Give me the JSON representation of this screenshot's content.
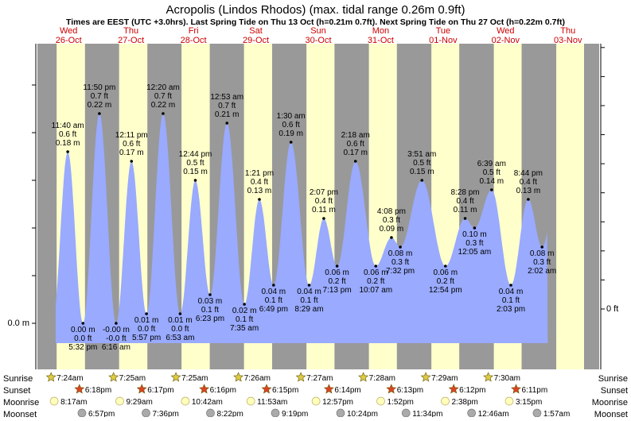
{
  "chart_data": {
    "type": "area",
    "title": "Acropolis (Lindos Rhodos) (max. tidal range 0.26m 0.9ft)",
    "subtitle": "Times are EEST (UTC +3.0hrs). Last Spring Tide on Thu 13 Oct (h=0.21m 0.7ft). Next Spring Tide on Thu 27 Oct (h=0.22m 0.7ft)",
    "xlabel": "",
    "ylabel": "",
    "y_unit_left": "m",
    "y_unit_right": "ft",
    "y_tick_left": "0.0 m",
    "y_tick_right": "0 ft",
    "ylim": [
      -0.02,
      0.24
    ],
    "days": [
      {
        "dow": "Wed",
        "date": "26-Oct"
      },
      {
        "dow": "Thu",
        "date": "27-Oct"
      },
      {
        "dow": "Fri",
        "date": "28-Oct"
      },
      {
        "dow": "Sat",
        "date": "29-Oct"
      },
      {
        "dow": "Sun",
        "date": "30-Oct"
      },
      {
        "dow": "Mon",
        "date": "31-Oct"
      },
      {
        "dow": "Tue",
        "date": "01-Nov"
      },
      {
        "dow": "Wed",
        "date": "02-Nov"
      },
      {
        "dow": "Thu",
        "date": "03-Nov"
      }
    ],
    "tides": [
      {
        "day": 0,
        "t": 11.667,
        "time": "11:40 am",
        "h": 0.18,
        "m_label": "0.18 m",
        "ft_label": "0.6 ft",
        "type": "high"
      },
      {
        "day": 0,
        "t": 17.533,
        "time": "5:32 pm",
        "h": 0.0,
        "m_label": "0.00 m",
        "ft_label": "0.0 ft",
        "type": "low"
      },
      {
        "day": 0,
        "t": 23.833,
        "time": "11:50 pm",
        "h": 0.22,
        "m_label": "0.22 m",
        "ft_label": "0.7 ft",
        "type": "high"
      },
      {
        "day": 1,
        "t": 6.267,
        "time": "6:16 am",
        "h": 0.0,
        "m_label": "-0.00 m",
        "ft_label": "-0.0 ft",
        "type": "low"
      },
      {
        "day": 1,
        "t": 12.183,
        "time": "12:11 pm",
        "h": 0.17,
        "m_label": "0.17 m",
        "ft_label": "0.6 ft",
        "type": "high"
      },
      {
        "day": 1,
        "t": 17.95,
        "time": "5:57 pm",
        "h": 0.01,
        "m_label": "0.01 m",
        "ft_label": "0.0 ft",
        "type": "low"
      },
      {
        "day": 2,
        "t": 0.333,
        "time": "12:20 am",
        "h": 0.22,
        "m_label": "0.22 m",
        "ft_label": "0.7 ft",
        "type": "high"
      },
      {
        "day": 2,
        "t": 6.883,
        "time": "6:53 am",
        "h": 0.01,
        "m_label": "0.01 m",
        "ft_label": "0.0 ft",
        "type": "low"
      },
      {
        "day": 2,
        "t": 12.733,
        "time": "12:44 pm",
        "h": 0.15,
        "m_label": "0.15 m",
        "ft_label": "0.5 ft",
        "type": "high"
      },
      {
        "day": 2,
        "t": 18.383,
        "time": "6:23 pm",
        "h": 0.03,
        "m_label": "0.03 m",
        "ft_label": "0.1 ft",
        "type": "low"
      },
      {
        "day": 3,
        "t": 0.883,
        "time": "12:53 am",
        "h": 0.21,
        "m_label": "0.21 m",
        "ft_label": "0.7 ft",
        "type": "high"
      },
      {
        "day": 3,
        "t": 7.583,
        "time": "7:35 am",
        "h": 0.02,
        "m_label": "0.02 m",
        "ft_label": "0.1 ft",
        "type": "low"
      },
      {
        "day": 3,
        "t": 13.35,
        "time": "1:21 pm",
        "h": 0.13,
        "m_label": "0.13 m",
        "ft_label": "0.4 ft",
        "type": "high"
      },
      {
        "day": 3,
        "t": 18.817,
        "time": "6:49 pm",
        "h": 0.04,
        "m_label": "0.04 m",
        "ft_label": "0.1 ft",
        "type": "low"
      },
      {
        "day": 4,
        "t": 1.5,
        "time": "1:30 am",
        "h": 0.19,
        "m_label": "0.19 m",
        "ft_label": "0.6 ft",
        "type": "high"
      },
      {
        "day": 4,
        "t": 8.483,
        "time": "8:29 am",
        "h": 0.04,
        "m_label": "0.04 m",
        "ft_label": "0.1 ft",
        "type": "low"
      },
      {
        "day": 4,
        "t": 14.117,
        "time": "2:07 pm",
        "h": 0.11,
        "m_label": "0.11 m",
        "ft_label": "0.4 ft",
        "type": "high"
      },
      {
        "day": 4,
        "t": 19.217,
        "time": "7:13 pm",
        "h": 0.06,
        "m_label": "0.06 m",
        "ft_label": "0.2 ft",
        "type": "low"
      },
      {
        "day": 5,
        "t": 2.3,
        "time": "2:18 am",
        "h": 0.17,
        "m_label": "0.17 m",
        "ft_label": "0.6 ft",
        "type": "high"
      },
      {
        "day": 5,
        "t": 10.117,
        "time": "10:07 am",
        "h": 0.06,
        "m_label": "0.06 m",
        "ft_label": "0.2 ft",
        "type": "low"
      },
      {
        "day": 5,
        "t": 16.133,
        "time": "4:08 pm",
        "h": 0.09,
        "m_label": "0.09 m",
        "ft_label": "0.3 ft",
        "type": "high"
      },
      {
        "day": 5,
        "t": 19.533,
        "time": "7:32 pm",
        "h": 0.08,
        "m_label": "0.08 m",
        "ft_label": "0.3 ft",
        "type": "low"
      },
      {
        "day": 6,
        "t": 3.85,
        "time": "3:51 am",
        "h": 0.15,
        "m_label": "0.15 m",
        "ft_label": "0.5 ft",
        "type": "high"
      },
      {
        "day": 6,
        "t": 12.9,
        "time": "12:54 pm",
        "h": 0.06,
        "m_label": "0.06 m",
        "ft_label": "0.2 ft",
        "type": "low"
      },
      {
        "day": 6,
        "t": 20.467,
        "time": "8:28 pm",
        "h": 0.11,
        "m_label": "0.11 m",
        "ft_label": "0.4 ft",
        "type": "high"
      },
      {
        "day": 7,
        "t": 0.083,
        "time": "12:05 am",
        "h": 0.1,
        "m_label": "0.10 m",
        "ft_label": "0.3 ft",
        "type": "low"
      },
      {
        "day": 7,
        "t": 6.65,
        "time": "6:39 am",
        "h": 0.14,
        "m_label": "0.14 m",
        "ft_label": "0.5 ft",
        "type": "high"
      },
      {
        "day": 7,
        "t": 14.05,
        "time": "2:03 pm",
        "h": 0.04,
        "m_label": "0.04 m",
        "ft_label": "0.1 ft",
        "type": "low"
      },
      {
        "day": 7,
        "t": 20.733,
        "time": "8:44 pm",
        "h": 0.13,
        "m_label": "0.13 m",
        "ft_label": "0.4 ft",
        "type": "high"
      },
      {
        "day": 8,
        "t": 2.033,
        "time": "2:02 am",
        "h": 0.08,
        "m_label": "0.08 m",
        "ft_label": "0.3 ft",
        "type": "low"
      }
    ],
    "sun_moon": {
      "row_labels": [
        "Sunrise",
        "Sunset",
        "Moonrise",
        "Moonset"
      ],
      "sunrise": [
        {
          "day": 0,
          "t": 7.4,
          "label": "7:24am"
        },
        {
          "day": 1,
          "t": 7.417,
          "label": "7:25am"
        },
        {
          "day": 2,
          "t": 7.417,
          "label": "7:25am"
        },
        {
          "day": 3,
          "t": 7.433,
          "label": "7:26am"
        },
        {
          "day": 4,
          "t": 7.45,
          "label": "7:27am"
        },
        {
          "day": 5,
          "t": 7.467,
          "label": "7:28am"
        },
        {
          "day": 6,
          "t": 7.483,
          "label": "7:29am"
        },
        {
          "day": 7,
          "t": 7.5,
          "label": "7:30am"
        }
      ],
      "sunset": [
        {
          "day": 0,
          "t": 18.3,
          "label": "6:18pm"
        },
        {
          "day": 1,
          "t": 18.283,
          "label": "6:17pm"
        },
        {
          "day": 2,
          "t": 18.267,
          "label": "6:16pm"
        },
        {
          "day": 3,
          "t": 18.25,
          "label": "6:15pm"
        },
        {
          "day": 4,
          "t": 18.233,
          "label": "6:14pm"
        },
        {
          "day": 5,
          "t": 18.217,
          "label": "6:13pm"
        },
        {
          "day": 6,
          "t": 18.2,
          "label": "6:12pm"
        },
        {
          "day": 7,
          "t": 18.183,
          "label": "6:11pm"
        }
      ],
      "moonrise": [
        {
          "day": 0,
          "t": 8.283,
          "label": "8:17am"
        },
        {
          "day": 1,
          "t": 9.483,
          "label": "9:29am"
        },
        {
          "day": 2,
          "t": 10.7,
          "label": "10:42am"
        },
        {
          "day": 3,
          "t": 11.883,
          "label": "11:53am"
        },
        {
          "day": 4,
          "t": 12.95,
          "label": "12:57pm"
        },
        {
          "day": 5,
          "t": 13.867,
          "label": "1:52pm"
        },
        {
          "day": 6,
          "t": 14.633,
          "label": "2:38pm"
        },
        {
          "day": 7,
          "t": 15.25,
          "label": "3:15pm"
        }
      ],
      "moonset": [
        {
          "day": 0,
          "t": 18.95,
          "label": "6:57pm"
        },
        {
          "day": 1,
          "t": 19.6,
          "label": "7:36pm"
        },
        {
          "day": 2,
          "t": 20.367,
          "label": "8:22pm"
        },
        {
          "day": 3,
          "t": 21.317,
          "label": "9:19pm"
        },
        {
          "day": 4,
          "t": 22.4,
          "label": "10:24pm"
        },
        {
          "day": 5,
          "t": 23.567,
          "label": "11:34pm"
        },
        {
          "day": 7,
          "t": 0.767,
          "label": "12:46am"
        },
        {
          "day": 8,
          "t": 1.95,
          "label": "1:57am"
        }
      ]
    },
    "colors": {
      "night": "#999999",
      "day": "#ffffcc",
      "water": "#99aaff",
      "day_label": "#cc0000",
      "sunrise_star": "#ddcc44",
      "sunset_star": "#dd4422",
      "moonrise": "#ffffbb",
      "moonset": "#aaaaaa"
    },
    "legend": "none",
    "grid": false
  }
}
